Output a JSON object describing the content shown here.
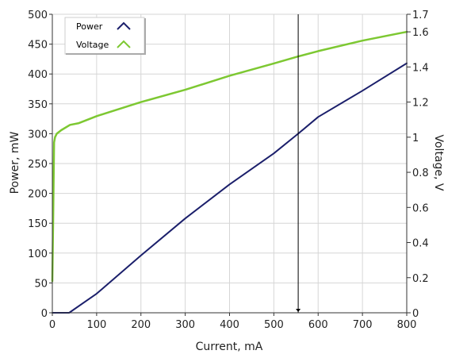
{
  "chart_data": {
    "type": "line",
    "xlabel": "Current, mA",
    "ylabel_left": "Power, mW",
    "ylabel_right": "Voltage, V",
    "xlim": [
      0,
      800
    ],
    "ylim_left": [
      0,
      500
    ],
    "ylim_right": [
      0,
      1.7
    ],
    "x_ticks": [
      0,
      100,
      200,
      300,
      400,
      500,
      600,
      700,
      800
    ],
    "y_left_ticks": [
      0,
      50,
      100,
      150,
      200,
      250,
      300,
      350,
      400,
      450,
      500
    ],
    "y_right_ticks": [
      0,
      0.2,
      0.4,
      0.6,
      0.8,
      1,
      1.2,
      1.4,
      1.6,
      1.7
    ],
    "grid": true,
    "legend_position": "top-left",
    "cursor_x": 555,
    "series": [
      {
        "name": "Power",
        "axis": "left",
        "color": "#1b1f6b",
        "x": [
          0,
          38,
          100,
          200,
          300,
          400,
          500,
          555,
          600,
          700,
          800
        ],
        "values": [
          0,
          0,
          32,
          96,
          158,
          215,
          267,
          300,
          328,
          372,
          418
        ]
      },
      {
        "name": "Voltage",
        "axis": "right",
        "color": "#7dc832",
        "x": [
          0,
          2,
          4,
          6,
          10,
          20,
          40,
          60,
          100,
          150,
          200,
          300,
          400,
          500,
          555,
          600,
          700,
          800
        ],
        "values": [
          0.18,
          0.55,
          0.97,
          1.0,
          1.02,
          1.04,
          1.07,
          1.08,
          1.12,
          1.16,
          1.2,
          1.27,
          1.35,
          1.42,
          1.46,
          1.49,
          1.55,
          1.6
        ]
      }
    ]
  }
}
